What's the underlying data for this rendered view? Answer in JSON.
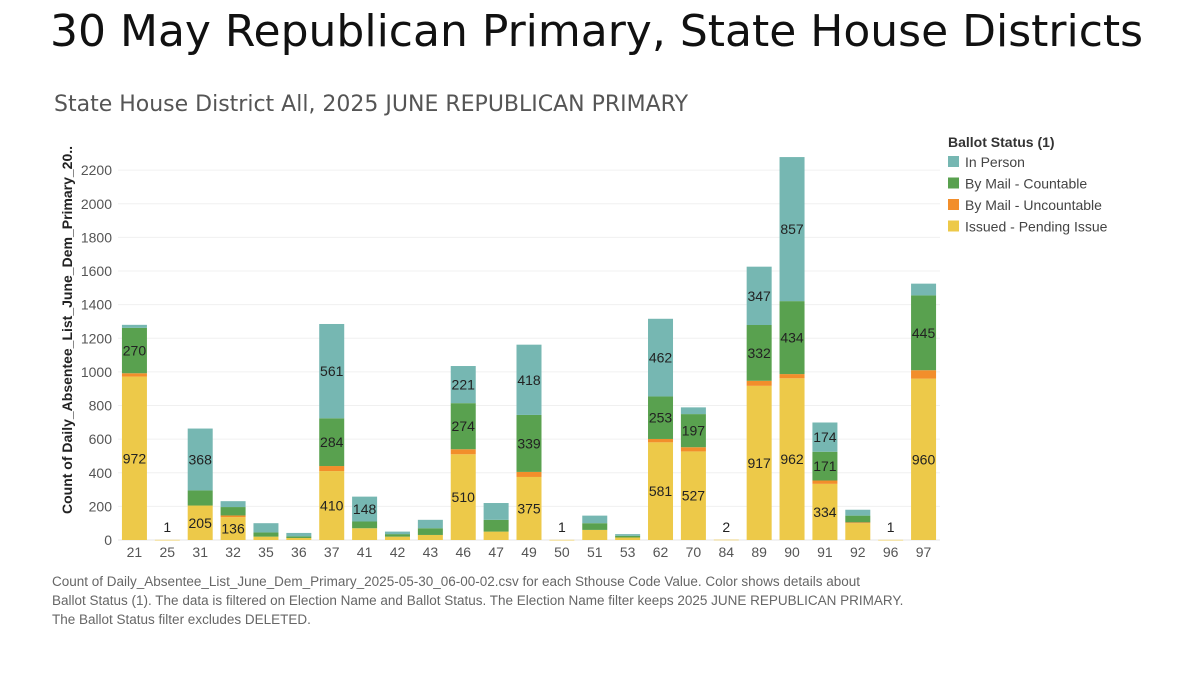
{
  "slide": {
    "title": "30 May Republican Primary, State House Districts"
  },
  "chart_data": {
    "type": "bar",
    "stacked": true,
    "title": "State House District All, 2025 JUNE REPUBLICAN PRIMARY",
    "ylabel": "Count of Daily_Absentee_List_June_Dem_Primary_20..",
    "xlabel": "",
    "ylim": [
      0,
      2300
    ],
    "yticks": [
      0,
      200,
      400,
      600,
      800,
      1000,
      1200,
      1400,
      1600,
      1800,
      2000,
      2200
    ],
    "grid": true,
    "legend_position": "right",
    "legend_title": "Ballot Status (1)",
    "categories": [
      "21",
      "25",
      "31",
      "32",
      "35",
      "36",
      "37",
      "41",
      "42",
      "43",
      "46",
      "47",
      "49",
      "50",
      "51",
      "53",
      "62",
      "70",
      "84",
      "89",
      "90",
      "91",
      "92",
      "96",
      "97"
    ],
    "series": [
      {
        "name": "Issued - Pending Issue",
        "color": "#EDC949",
        "values": [
          972,
          1,
          205,
          136,
          20,
          12,
          410,
          70,
          20,
          30,
          510,
          50,
          375,
          1,
          60,
          15,
          581,
          527,
          2,
          917,
          962,
          334,
          100,
          1,
          960
        ]
      },
      {
        "name": "By Mail - Uncountable",
        "color": "#F28E2B",
        "values": [
          20,
          0,
          0,
          10,
          0,
          0,
          30,
          0,
          0,
          0,
          30,
          0,
          30,
          0,
          0,
          0,
          20,
          25,
          0,
          30,
          25,
          20,
          5,
          0,
          50
        ]
      },
      {
        "name": "By Mail - Countable",
        "color": "#59A14F",
        "values": [
          270,
          0,
          90,
          50,
          25,
          10,
          284,
          40,
          15,
          40,
          274,
          70,
          339,
          0,
          40,
          10,
          253,
          197,
          0,
          332,
          434,
          171,
          40,
          0,
          445
        ]
      },
      {
        "name": "In Person",
        "color": "#76B7B2",
        "values": [
          18,
          0,
          368,
          35,
          55,
          20,
          561,
          148,
          15,
          50,
          221,
          100,
          418,
          0,
          45,
          10,
          462,
          40,
          0,
          347,
          857,
          174,
          35,
          0,
          70
        ]
      }
    ],
    "data_labels": {
      "Issued - Pending Issue": {
        "21": 972,
        "25": 1,
        "31": 205,
        "32": 136,
        "37": 410,
        "46": 510,
        "49": 375,
        "50": 1,
        "62": 581,
        "70": 527,
        "84": 2,
        "89": 917,
        "90": 962,
        "91": 334,
        "96": 1,
        "97": 960
      },
      "By Mail - Countable": {
        "21": 270,
        "37": 284,
        "46": 274,
        "49": 339,
        "62": 253,
        "70": 197,
        "89": 332,
        "90": 434,
        "91": 171,
        "97": 445
      },
      "In Person": {
        "31": 368,
        "37": 561,
        "41": 148,
        "46": 221,
        "49": 418,
        "62": 462,
        "89": 347,
        "90": 857,
        "91": 174
      }
    },
    "legend_order": [
      "In Person",
      "By Mail - Countable",
      "By Mail - Uncountable",
      "Issued - Pending Issue"
    ]
  },
  "footnote": {
    "line1": "Count of Daily_Absentee_List_June_Dem_Primary_2025-05-30_06-00-02.csv for each Sthouse Code Value.  Color shows details about",
    "line2": "Ballot Status (1). The data is filtered on Election Name and Ballot Status. The Election Name filter keeps 2025 JUNE REPUBLICAN PRIMARY.",
    "line3": "The Ballot Status filter excludes DELETED."
  }
}
